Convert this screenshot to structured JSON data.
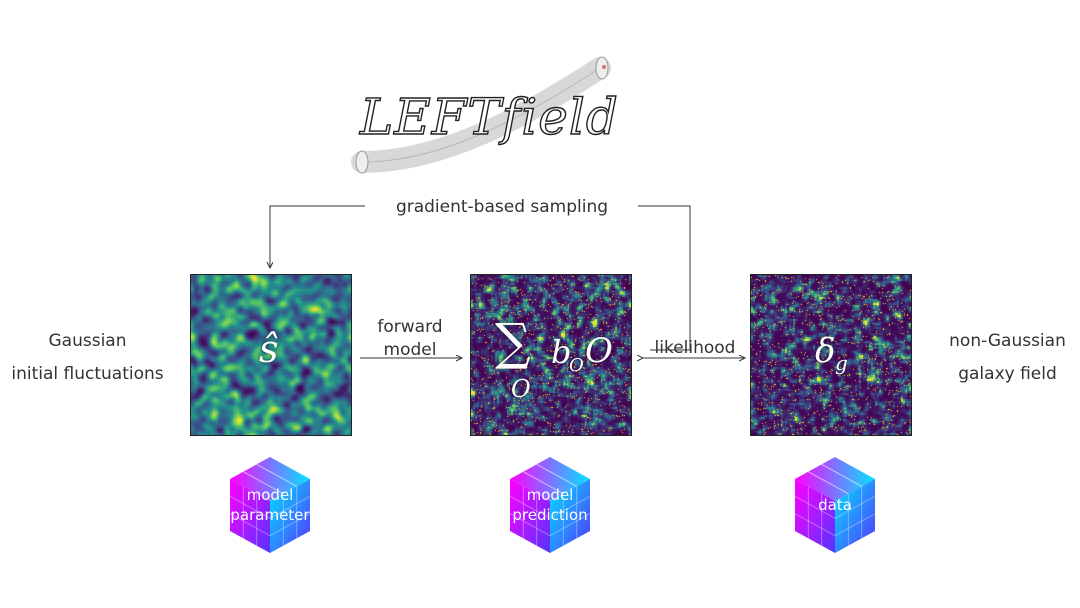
{
  "logo": {
    "text": "LEFTfield"
  },
  "loop_label": "gradient-based sampling",
  "left_label": [
    "Gaussian",
    "initial fluctuations"
  ],
  "right_label": [
    "non-Gaussian",
    "galaxy field"
  ],
  "arrow_forward": [
    "forward",
    "model"
  ],
  "arrow_likelihood": "likelihood",
  "panels": [
    {
      "symbol": "ŝ"
    },
    {
      "symbol_sum": "∑",
      "symbol_sub": "O",
      "symbol_term": "b",
      "symbol_term_sub": "O",
      "symbol_tail": "O"
    },
    {
      "symbol": "δ",
      "symbol_sub": "g"
    }
  ],
  "cubes": [
    {
      "lines": [
        "model",
        "parameter"
      ]
    },
    {
      "lines": [
        "model",
        "prediction"
      ]
    },
    {
      "lines": [
        "data"
      ]
    }
  ],
  "colors": {
    "viridis_dark": "#440154",
    "viridis_teal": "#21918c",
    "viridis_yellow": "#fde725",
    "cube_magenta": "#ff00ff",
    "cube_cyan": "#00e5ff",
    "cube_blue": "#5533ff"
  }
}
